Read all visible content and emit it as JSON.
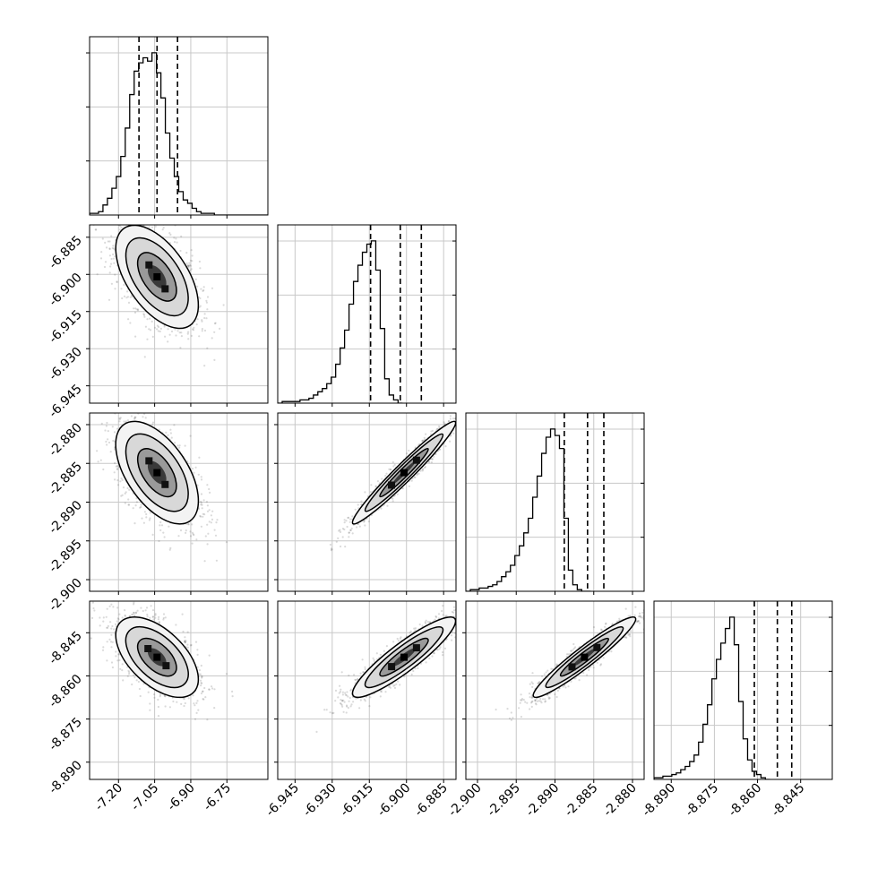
{
  "chart_data": {
    "type": "corner",
    "n_params": 4,
    "grid": true,
    "axis_labels": [
      "",
      "",
      "",
      ""
    ],
    "ranges": [
      [
        -7.32,
        -6.58
      ],
      [
        -6.952,
        -6.88
      ],
      [
        -2.9015,
        -2.8785
      ],
      [
        -8.896,
        -8.834
      ]
    ],
    "x_ticks": [
      [
        "-7.20",
        "-7.05",
        "-6.90",
        "-6.75"
      ],
      [
        "-6.945",
        "-6.930",
        "-6.915",
        "-6.900",
        "-6.885"
      ],
      [
        "-2.900",
        "-2.895",
        "-2.890",
        "-2.885",
        "-2.880"
      ],
      [
        "-8.890",
        "-8.875",
        "-8.860",
        "-8.845"
      ]
    ],
    "y_ticks": [
      [],
      [
        "-6.885",
        "-6.900",
        "-6.915",
        "-6.930",
        "-6.945"
      ],
      [
        "-2.880",
        "-2.885",
        "-2.890",
        "-2.895",
        "-2.900"
      ],
      [
        "-8.845",
        "-8.860",
        "-8.875",
        "-8.890"
      ]
    ],
    "quantiles": [
      [
        -7.115,
        -7.04,
        -6.955
      ],
      [
        -6.9145,
        -6.9025,
        -6.894
      ],
      [
        -2.8888,
        -2.8858,
        -2.8837
      ],
      [
        -8.8611,
        -8.8531,
        -8.8481
      ]
    ],
    "marginal_histograms": [
      {
        "start": -7.32,
        "bin_width": 0.0185,
        "counts": [
          1,
          1,
          2,
          6,
          10,
          16,
          23,
          35,
          52,
          72,
          86,
          91,
          94,
          92,
          97,
          85,
          70,
          49,
          34,
          23,
          14,
          9,
          7,
          4,
          2,
          1,
          1,
          1,
          0,
          0,
          0,
          0,
          0,
          0,
          0,
          0,
          0,
          0,
          0,
          0
        ]
      },
      {
        "start": -6.952,
        "bin_width": 0.0018,
        "counts": [
          0,
          1,
          1,
          1,
          1,
          2,
          2,
          3,
          5,
          7,
          9,
          12,
          16,
          24,
          34,
          45,
          61,
          75,
          85,
          93,
          98,
          100,
          82,
          46,
          15,
          5,
          2,
          0
        ]
      },
      {
        "start": -2.9015,
        "bin_width": 0.000575,
        "counts": [
          0,
          1,
          1,
          2,
          2,
          3,
          4,
          6,
          9,
          12,
          16,
          22,
          28,
          36,
          45,
          58,
          71,
          85,
          95,
          100,
          96,
          88,
          45,
          13,
          4,
          1,
          0,
          0
        ]
      },
      {
        "start": -8.896,
        "bin_width": 0.00155,
        "counts": [
          1,
          1,
          2,
          2,
          3,
          4,
          6,
          8,
          11,
          15,
          23,
          34,
          46,
          62,
          74,
          84,
          93,
          100,
          83,
          48,
          25,
          12,
          5,
          3,
          1,
          0
        ]
      }
    ],
    "pairs": [
      {
        "x": 0,
        "y": 1,
        "mean": [
          -7.04,
          -6.901
        ],
        "sd": [
          0.07,
          0.0085
        ],
        "corr": -0.55
      },
      {
        "x": 0,
        "y": 2,
        "mean": [
          -7.04,
          -2.8862
        ],
        "sd": [
          0.07,
          0.0027
        ],
        "corr": -0.55
      },
      {
        "x": 1,
        "y": 2,
        "mean": [
          -6.901,
          -2.8862
        ],
        "sd": [
          0.0085,
          0.0027
        ],
        "corr": 0.97
      },
      {
        "x": 0,
        "y": 3,
        "mean": [
          -7.04,
          -8.8535
        ],
        "sd": [
          0.07,
          0.0057
        ],
        "corr": -0.55
      },
      {
        "x": 1,
        "y": 3,
        "mean": [
          -6.901,
          -8.8535
        ],
        "sd": [
          0.0085,
          0.0057
        ],
        "corr": 0.9
      },
      {
        "x": 2,
        "y": 3,
        "mean": [
          -2.8862,
          -8.8535
        ],
        "sd": [
          0.0027,
          0.0057
        ],
        "corr": 0.95
      }
    ]
  }
}
